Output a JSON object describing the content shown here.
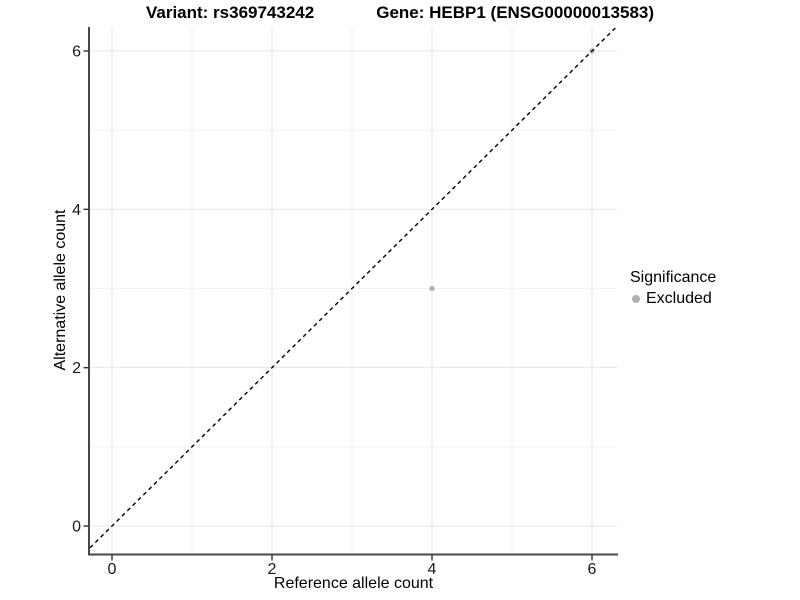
{
  "chart_data": {
    "type": "scatter",
    "titles": {
      "variant": "Variant: rs369743242",
      "gene": "Gene: HEBP1 (ENSG00000013583)"
    },
    "xlabel": "Reference allele count",
    "ylabel": "Alternative allele count",
    "xlim": [
      -0.3,
      6.3
    ],
    "ylim": [
      -0.34,
      6.3
    ],
    "x_ticks": [
      0,
      2,
      4,
      6
    ],
    "y_ticks": [
      0,
      2,
      4,
      6
    ],
    "x_minor": [
      1,
      3,
      5
    ],
    "y_minor": [
      1,
      3,
      5
    ],
    "grid": true,
    "identity_line": {
      "style": "dashed",
      "slope": 1,
      "intercept": 0,
      "color": "#000000"
    },
    "series": [
      {
        "name": "Excluded",
        "color": "#b0b0b0",
        "points": [
          {
            "x": 4,
            "y": 3
          },
          {
            "x": 6,
            "y": 6
          }
        ]
      }
    ],
    "legend": {
      "title": "Significance",
      "position": "right",
      "items": [
        {
          "label": "Excluded",
          "color": "#b0b0b0"
        }
      ]
    },
    "colors": {
      "axis_line": "#474747",
      "tick": "#333333",
      "grid_major": "#e6e6e6",
      "grid_minor": "#f1f1f1",
      "text": "#1a1a1a"
    }
  }
}
